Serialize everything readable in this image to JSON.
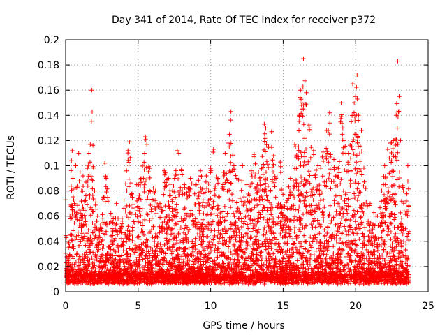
{
  "chart_data": {
    "type": "scatter",
    "title": "Day 341 of 2014, Rate Of TEC Index for receiver p372",
    "xlabel": "GPS time / hours",
    "ylabel": "ROTI / TECUs",
    "xlim": [
      0,
      25
    ],
    "ylim": [
      0,
      0.2
    ],
    "xticks": [
      "0",
      "5",
      "10",
      "15",
      "20",
      "25"
    ],
    "yticks": [
      "0",
      "0.02",
      "0.04",
      "0.06",
      "0.08",
      "0.1",
      "0.12",
      "0.14",
      "0.16",
      "0.18",
      "0.2"
    ],
    "grid": true,
    "marker": "+",
    "color": "#ff0000",
    "data_extent_x": [
      0,
      23.7
    ],
    "series": [
      {
        "points": [
          [
            0.0,
            0.073
          ],
          [
            0.05,
            0.043
          ],
          [
            0.1,
            0.02
          ],
          [
            0.2,
            0.035
          ],
          [
            0.3,
            0.06
          ],
          [
            0.4,
            0.104
          ],
          [
            0.45,
            0.112
          ],
          [
            0.5,
            0.09
          ],
          [
            0.6,
            0.07
          ],
          [
            0.7,
            0.1
          ],
          [
            0.8,
            0.084
          ],
          [
            0.9,
            0.11
          ],
          [
            1.0,
            0.095
          ],
          [
            1.1,
            0.08
          ],
          [
            1.2,
            0.092
          ],
          [
            1.3,
            0.072
          ],
          [
            1.4,
            0.087
          ],
          [
            1.5,
            0.098
          ],
          [
            1.6,
            0.11
          ],
          [
            1.7,
            0.117
          ],
          [
            1.8,
            0.16
          ],
          [
            2.0,
            0.08
          ],
          [
            2.2,
            0.06
          ],
          [
            2.4,
            0.053
          ],
          [
            2.7,
            0.102
          ],
          [
            2.8,
            0.09
          ],
          [
            2.9,
            0.075
          ],
          [
            3.2,
            0.06
          ],
          [
            3.5,
            0.07
          ],
          [
            3.8,
            0.05
          ],
          [
            4.2,
            0.096
          ],
          [
            4.3,
            0.112
          ],
          [
            4.4,
            0.119
          ],
          [
            4.6,
            0.075
          ],
          [
            4.9,
            0.085
          ],
          [
            5.2,
            0.09
          ],
          [
            5.5,
            0.123
          ],
          [
            5.6,
            0.117
          ],
          [
            5.8,
            0.098
          ],
          [
            6.2,
            0.08
          ],
          [
            6.5,
            0.07
          ],
          [
            6.8,
            0.096
          ],
          [
            7.1,
            0.09
          ],
          [
            7.5,
            0.09
          ],
          [
            7.7,
            0.112
          ],
          [
            7.8,
            0.11
          ],
          [
            8.2,
            0.085
          ],
          [
            8.6,
            0.09
          ],
          [
            9.0,
            0.085
          ],
          [
            9.3,
            0.096
          ],
          [
            9.7,
            0.092
          ],
          [
            10.0,
            0.098
          ],
          [
            10.2,
            0.113
          ],
          [
            10.5,
            0.09
          ],
          [
            10.8,
            0.082
          ],
          [
            11.0,
            0.11
          ],
          [
            11.2,
            0.118
          ],
          [
            11.3,
            0.125
          ],
          [
            11.4,
            0.143
          ],
          [
            11.6,
            0.1
          ],
          [
            11.8,
            0.09
          ],
          [
            12.2,
            0.1
          ],
          [
            12.5,
            0.085
          ],
          [
            12.8,
            0.096
          ],
          [
            13.0,
            0.109
          ],
          [
            13.3,
            0.095
          ],
          [
            13.7,
            0.133
          ],
          [
            13.8,
            0.13
          ],
          [
            14.0,
            0.115
          ],
          [
            14.2,
            0.127
          ],
          [
            14.5,
            0.09
          ],
          [
            14.8,
            0.103
          ],
          [
            15.1,
            0.068
          ],
          [
            15.5,
            0.09
          ],
          [
            15.8,
            0.117
          ],
          [
            16.1,
            0.14
          ],
          [
            16.2,
            0.16
          ],
          [
            16.3,
            0.145
          ],
          [
            16.4,
            0.185
          ],
          [
            16.6,
            0.158
          ],
          [
            16.8,
            0.13
          ],
          [
            17.1,
            0.112
          ],
          [
            17.4,
            0.1
          ],
          [
            17.7,
            0.107
          ],
          [
            18.0,
            0.128
          ],
          [
            18.2,
            0.142
          ],
          [
            18.5,
            0.105
          ],
          [
            18.8,
            0.098
          ],
          [
            19.0,
            0.15
          ],
          [
            19.2,
            0.12
          ],
          [
            19.5,
            0.11
          ],
          [
            19.7,
            0.135
          ],
          [
            19.8,
            0.165
          ],
          [
            19.9,
            0.15
          ],
          [
            20.0,
            0.155
          ],
          [
            20.1,
            0.172
          ],
          [
            20.2,
            0.14
          ],
          [
            20.4,
            0.128
          ],
          [
            20.7,
            0.082
          ],
          [
            21.0,
            0.07
          ],
          [
            21.5,
            0.06
          ],
          [
            21.8,
            0.08
          ],
          [
            22.0,
            0.1
          ],
          [
            22.2,
            0.113
          ],
          [
            22.4,
            0.118
          ],
          [
            22.6,
            0.12
          ],
          [
            22.8,
            0.14
          ],
          [
            22.9,
            0.183
          ],
          [
            23.0,
            0.155
          ],
          [
            23.1,
            0.12
          ],
          [
            23.3,
            0.08
          ],
          [
            23.5,
            0.072
          ],
          [
            23.6,
            0.1
          ]
        ]
      }
    ]
  }
}
